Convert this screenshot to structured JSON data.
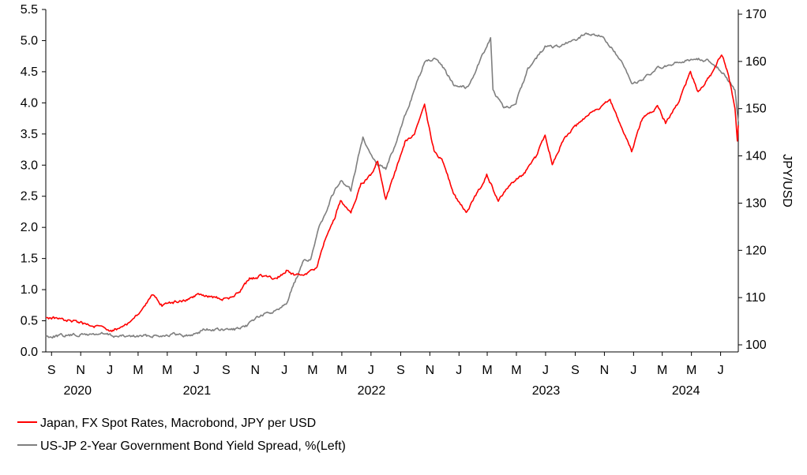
{
  "chart_data": {
    "type": "line",
    "title": "",
    "left_axis": {
      "label": "",
      "range": [
        0,
        5.5
      ],
      "ticks": [
        "0.0",
        "0.5",
        "1.0",
        "1.5",
        "2.0",
        "2.5",
        "3.0",
        "3.5",
        "4.0",
        "4.5",
        "5.0",
        "5.5"
      ]
    },
    "right_axis": {
      "label": "JPY/USD",
      "range": [
        98.5,
        171
      ],
      "ticks": [
        "100",
        "110",
        "120",
        "130",
        "140",
        "150",
        "160",
        "170"
      ]
    },
    "x_axis": {
      "month_labels": [
        "S",
        "N",
        "J",
        "M",
        "M",
        "J",
        "S",
        "N",
        "J",
        "M",
        "M",
        "J",
        "S",
        "N",
        "J",
        "M",
        "M",
        "J",
        "S",
        "N",
        "J",
        "M",
        "M",
        "J"
      ],
      "year_labels": [
        "2020",
        "2021",
        "2022",
        "2023",
        "2024"
      ],
      "range": [
        "2020-08-20",
        "2024-08-07"
      ]
    },
    "grid": false,
    "legend_position": "bottom-left",
    "series": [
      {
        "name": "Japan, FX Spot Rates, Macrobond, JPY per USD",
        "axis": "right",
        "color": "#ff0000",
        "points": [
          [
            "2020-08-20",
            105.8
          ],
          [
            "2020-09-15",
            105.6
          ],
          [
            "2020-10-15",
            105.0
          ],
          [
            "2020-11-15",
            104.3
          ],
          [
            "2020-12-15",
            103.7
          ],
          [
            "2021-01-05",
            103.0
          ],
          [
            "2021-01-25",
            103.8
          ],
          [
            "2021-02-15",
            105.0
          ],
          [
            "2021-03-10",
            107.5
          ],
          [
            "2021-03-31",
            110.5
          ],
          [
            "2021-04-20",
            108.3
          ],
          [
            "2021-05-15",
            109.0
          ],
          [
            "2021-06-10",
            109.5
          ],
          [
            "2021-07-05",
            110.8
          ],
          [
            "2021-07-25",
            110.3
          ],
          [
            "2021-08-20",
            109.8
          ],
          [
            "2021-09-10",
            109.8
          ],
          [
            "2021-09-30",
            111.5
          ],
          [
            "2021-10-20",
            114.0
          ],
          [
            "2021-11-20",
            114.8
          ],
          [
            "2021-12-15",
            113.8
          ],
          [
            "2022-01-05",
            115.8
          ],
          [
            "2022-01-25",
            114.5
          ],
          [
            "2022-02-20",
            115.0
          ],
          [
            "2022-03-10",
            116.5
          ],
          [
            "2022-03-25",
            121.5
          ],
          [
            "2022-04-15",
            126.5
          ],
          [
            "2022-04-28",
            130.5
          ],
          [
            "2022-05-20",
            127.8
          ],
          [
            "2022-06-10",
            134.0
          ],
          [
            "2022-06-30",
            135.8
          ],
          [
            "2022-07-15",
            139.0
          ],
          [
            "2022-08-01",
            131.0
          ],
          [
            "2022-08-20",
            136.5
          ],
          [
            "2022-09-10",
            143.0
          ],
          [
            "2022-09-30",
            144.7
          ],
          [
            "2022-10-21",
            150.5
          ],
          [
            "2022-11-10",
            141.0
          ],
          [
            "2022-11-30",
            138.5
          ],
          [
            "2022-12-20",
            132.0
          ],
          [
            "2023-01-16",
            128.0
          ],
          [
            "2023-02-05",
            131.5
          ],
          [
            "2023-02-28",
            136.0
          ],
          [
            "2023-03-24",
            130.5
          ],
          [
            "2023-04-15",
            133.8
          ],
          [
            "2023-05-15",
            136.0
          ],
          [
            "2023-06-10",
            139.5
          ],
          [
            "2023-06-30",
            144.5
          ],
          [
            "2023-07-15",
            138.5
          ],
          [
            "2023-08-10",
            144.0
          ],
          [
            "2023-09-15",
            147.5
          ],
          [
            "2023-10-15",
            149.8
          ],
          [
            "2023-11-13",
            151.7
          ],
          [
            "2023-12-05",
            146.5
          ],
          [
            "2023-12-28",
            141.0
          ],
          [
            "2024-01-20",
            148.0
          ],
          [
            "2024-02-20",
            150.5
          ],
          [
            "2024-03-08",
            147.0
          ],
          [
            "2024-04-05",
            151.5
          ],
          [
            "2024-04-29",
            157.8
          ],
          [
            "2024-05-15",
            153.5
          ],
          [
            "2024-06-10",
            157.0
          ],
          [
            "2024-07-03",
            161.7
          ],
          [
            "2024-07-18",
            157.0
          ],
          [
            "2024-07-31",
            150.0
          ],
          [
            "2024-08-05",
            143.0
          ],
          [
            "2024-08-07",
            146.5
          ]
        ]
      },
      {
        "name": "US-JP 2-Year Government Bond Yield Spread, %(Left)",
        "axis": "left",
        "color": "#7f7f7f",
        "points": [
          [
            "2020-08-20",
            0.25
          ],
          [
            "2020-10-15",
            0.27
          ],
          [
            "2020-12-15",
            0.29
          ],
          [
            "2021-01-15",
            0.25
          ],
          [
            "2021-03-01",
            0.25
          ],
          [
            "2021-05-15",
            0.28
          ],
          [
            "2021-06-20",
            0.26
          ],
          [
            "2021-07-15",
            0.36
          ],
          [
            "2021-09-01",
            0.35
          ],
          [
            "2021-10-10",
            0.38
          ],
          [
            "2021-11-01",
            0.55
          ],
          [
            "2021-12-10",
            0.65
          ],
          [
            "2022-01-05",
            0.8
          ],
          [
            "2022-02-10",
            1.45
          ],
          [
            "2022-02-25",
            1.5
          ],
          [
            "2022-03-15",
            2.0
          ],
          [
            "2022-04-10",
            2.5
          ],
          [
            "2022-04-28",
            2.75
          ],
          [
            "2022-05-20",
            2.6
          ],
          [
            "2022-06-14",
            3.45
          ],
          [
            "2022-07-10",
            3.05
          ],
          [
            "2022-08-01",
            2.95
          ],
          [
            "2022-08-20",
            3.3
          ],
          [
            "2022-09-15",
            3.9
          ],
          [
            "2022-10-21",
            4.65
          ],
          [
            "2022-11-10",
            4.7
          ],
          [
            "2022-11-30",
            4.55
          ],
          [
            "2022-12-20",
            4.3
          ],
          [
            "2023-01-20",
            4.25
          ],
          [
            "2023-02-15",
            4.7
          ],
          [
            "2023-03-08",
            5.05
          ],
          [
            "2023-03-13",
            4.2
          ],
          [
            "2023-04-05",
            3.9
          ],
          [
            "2023-04-30",
            4.0
          ],
          [
            "2023-05-25",
            4.55
          ],
          [
            "2023-06-30",
            4.9
          ],
          [
            "2023-07-30",
            4.9
          ],
          [
            "2023-08-30",
            5.0
          ],
          [
            "2023-09-20",
            5.1
          ],
          [
            "2023-10-20",
            5.1
          ],
          [
            "2023-11-15",
            4.9
          ],
          [
            "2023-12-10",
            4.6
          ],
          [
            "2023-12-28",
            4.3
          ],
          [
            "2024-01-25",
            4.4
          ],
          [
            "2024-02-20",
            4.55
          ],
          [
            "2024-03-20",
            4.6
          ],
          [
            "2024-04-30",
            4.7
          ],
          [
            "2024-05-20",
            4.7
          ],
          [
            "2024-06-15",
            4.65
          ],
          [
            "2024-07-10",
            4.45
          ],
          [
            "2024-07-31",
            4.2
          ],
          [
            "2024-08-07",
            3.7
          ]
        ]
      }
    ]
  }
}
